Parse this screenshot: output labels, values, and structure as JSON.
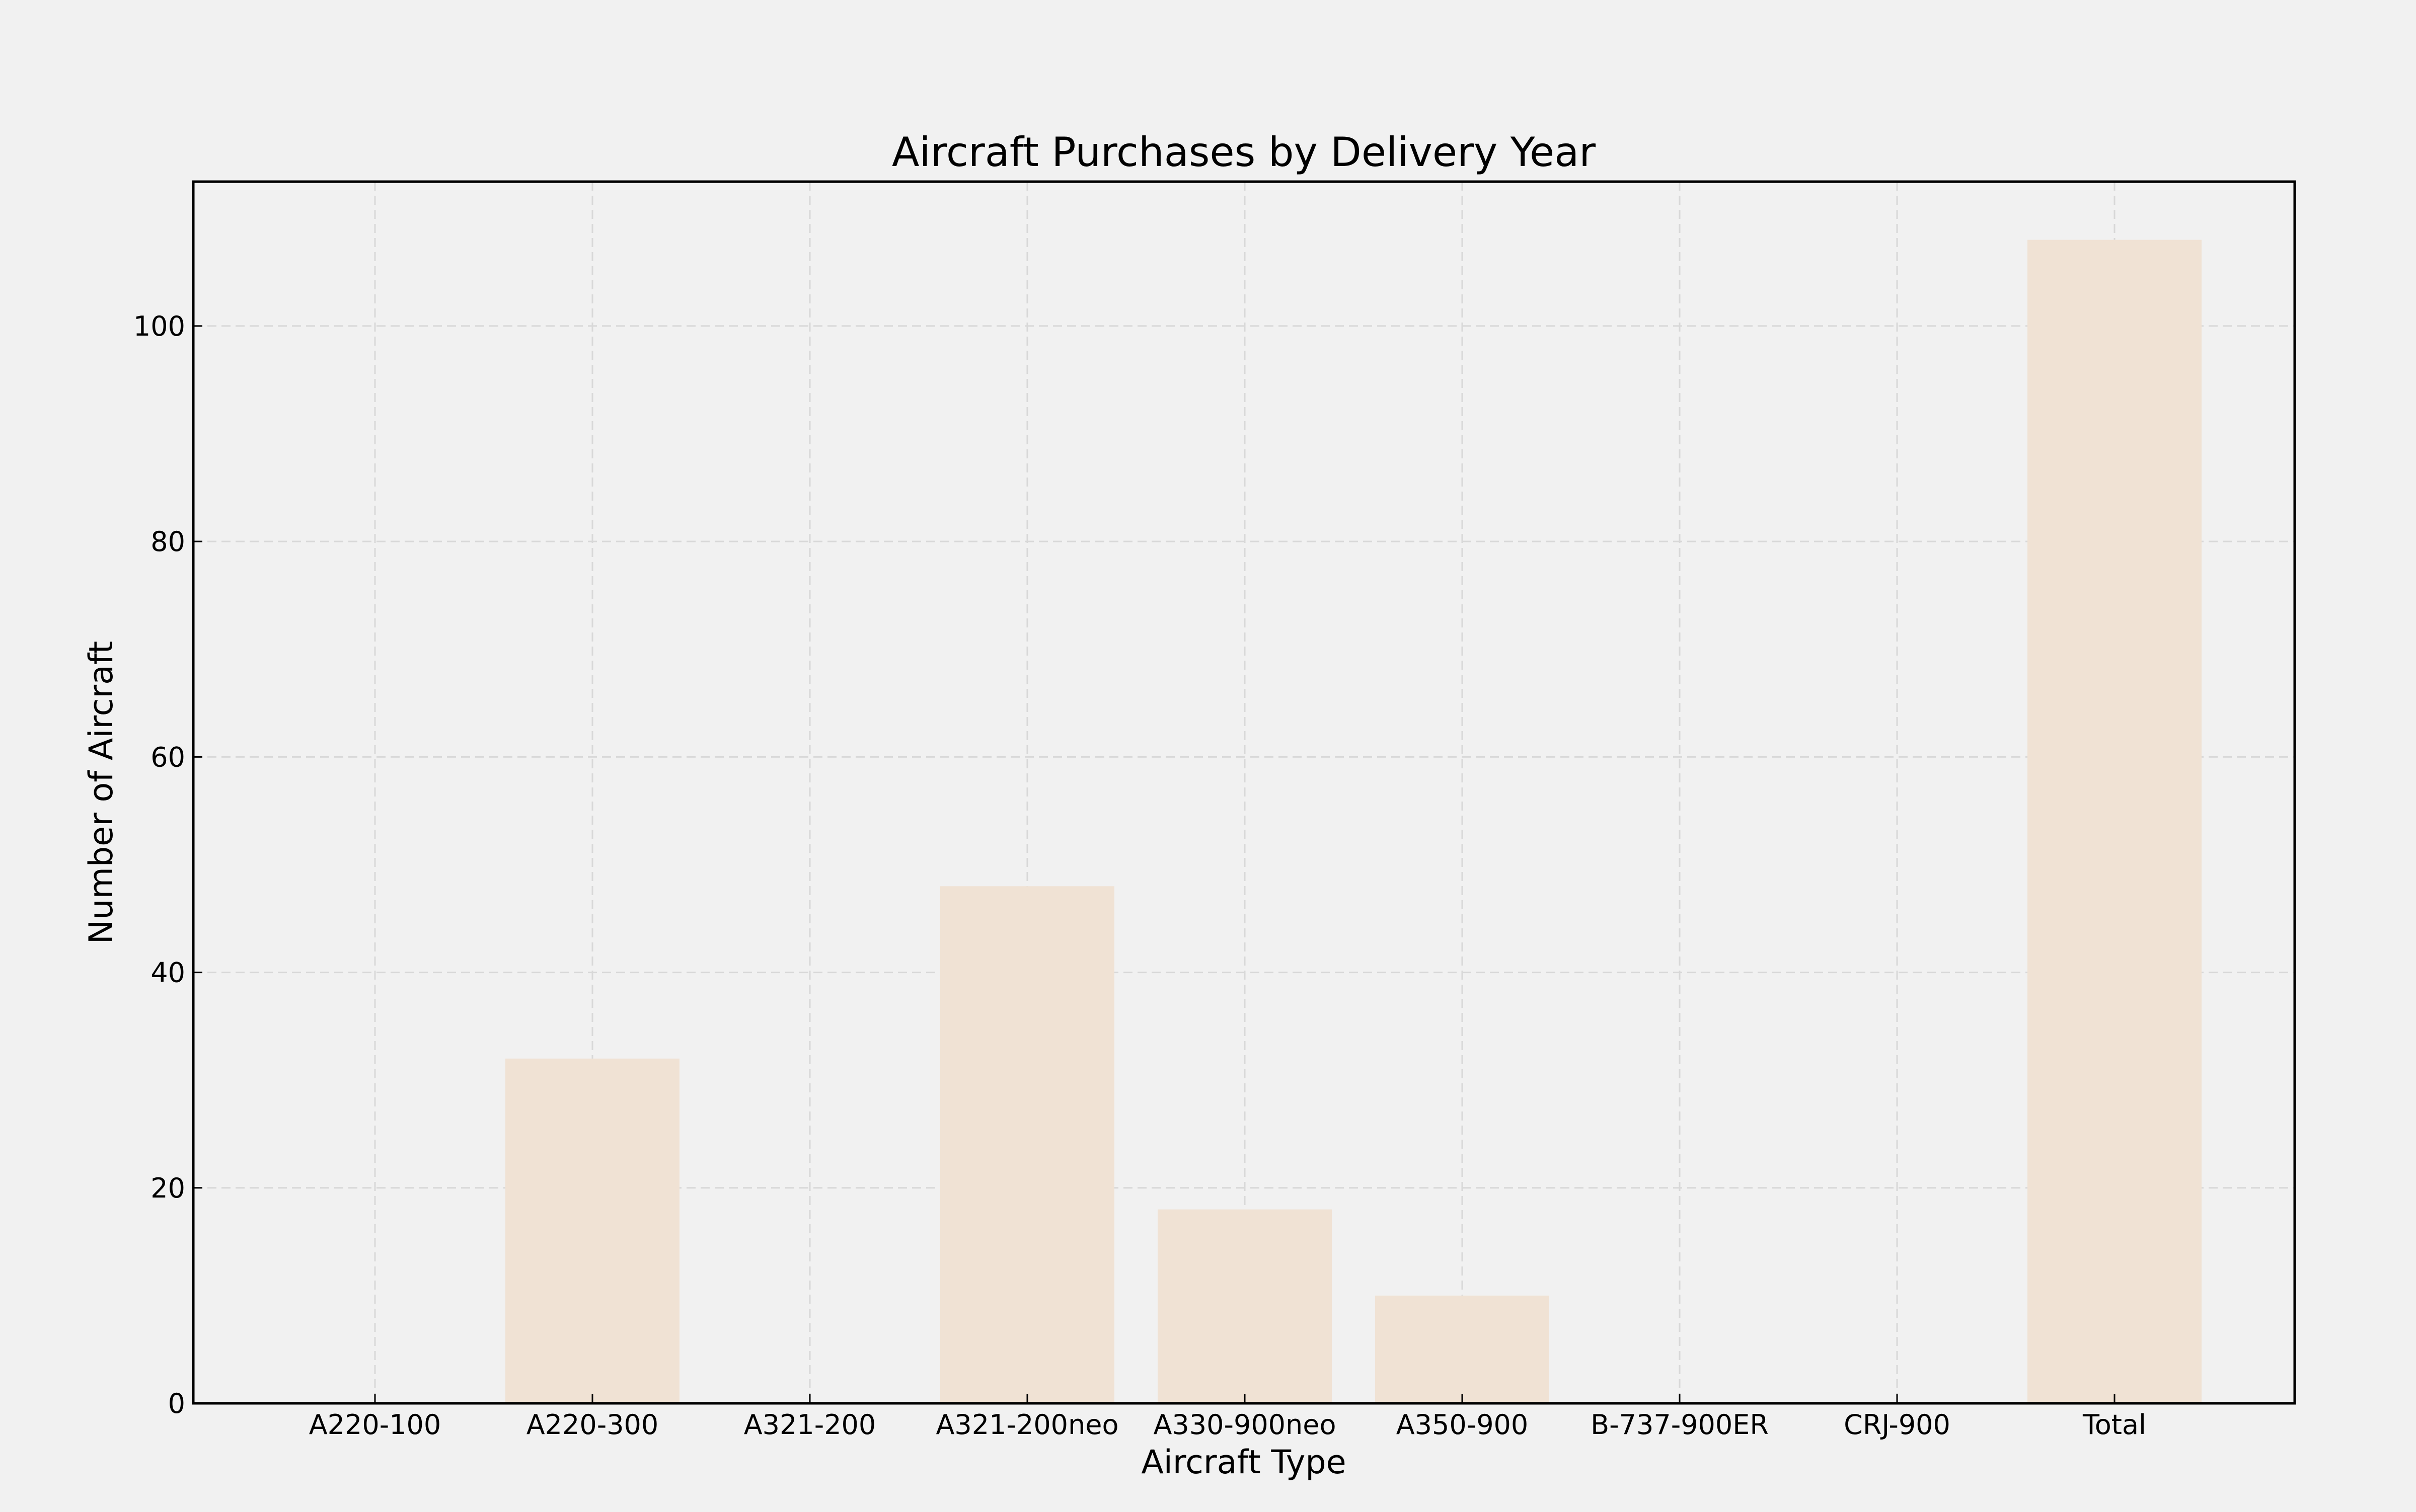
{
  "chart_data": {
    "type": "bar",
    "title": "Aircraft Purchases by Delivery Year",
    "xlabel": "Aircraft Type",
    "ylabel": "Number of Aircraft",
    "categories": [
      "A220-100",
      "A220-300",
      "A321-200",
      "A321-200neo",
      "A330-900neo",
      "A350-900",
      "B-737-900ER",
      "CRJ-900",
      "Total"
    ],
    "values": [
      0,
      32,
      0,
      48,
      18,
      10,
      0,
      0,
      108
    ],
    "ylim": [
      0,
      113.4
    ],
    "yticks": [
      0,
      20,
      40,
      60,
      80,
      100
    ],
    "grid": true,
    "colors": {
      "background": "#f1f1f1",
      "bar": "#f0e2d4",
      "grid": "#d8d8d8",
      "axis": "#000000"
    }
  }
}
